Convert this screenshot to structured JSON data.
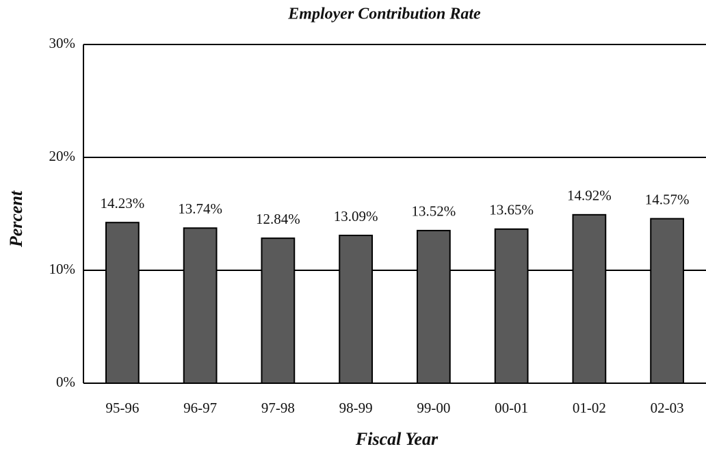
{
  "chart_data": {
    "type": "bar",
    "title": "Employer Contribution Rate",
    "x_label": "Fiscal Year",
    "y_label": "Percent",
    "categories": [
      "95-96",
      "96-97",
      "97-98",
      "98-99",
      "99-00",
      "00-01",
      "01-02",
      "02-03"
    ],
    "values": [
      14.23,
      13.74,
      12.84,
      13.09,
      13.52,
      13.65,
      14.92,
      14.57
    ],
    "value_labels": [
      "14.23%",
      "13.74%",
      "12.84%",
      "13.09%",
      "13.52%",
      "13.65%",
      "14.92%",
      "14.57%"
    ],
    "color": "#5a5a5a",
    "ylim": [
      0,
      30
    ],
    "yticks": [
      {
        "value": 0,
        "label": "0%"
      },
      {
        "value": 10,
        "label": "10%"
      },
      {
        "value": 20,
        "label": "20%"
      },
      {
        "value": 30,
        "label": "30%"
      }
    ],
    "grid": true
  }
}
